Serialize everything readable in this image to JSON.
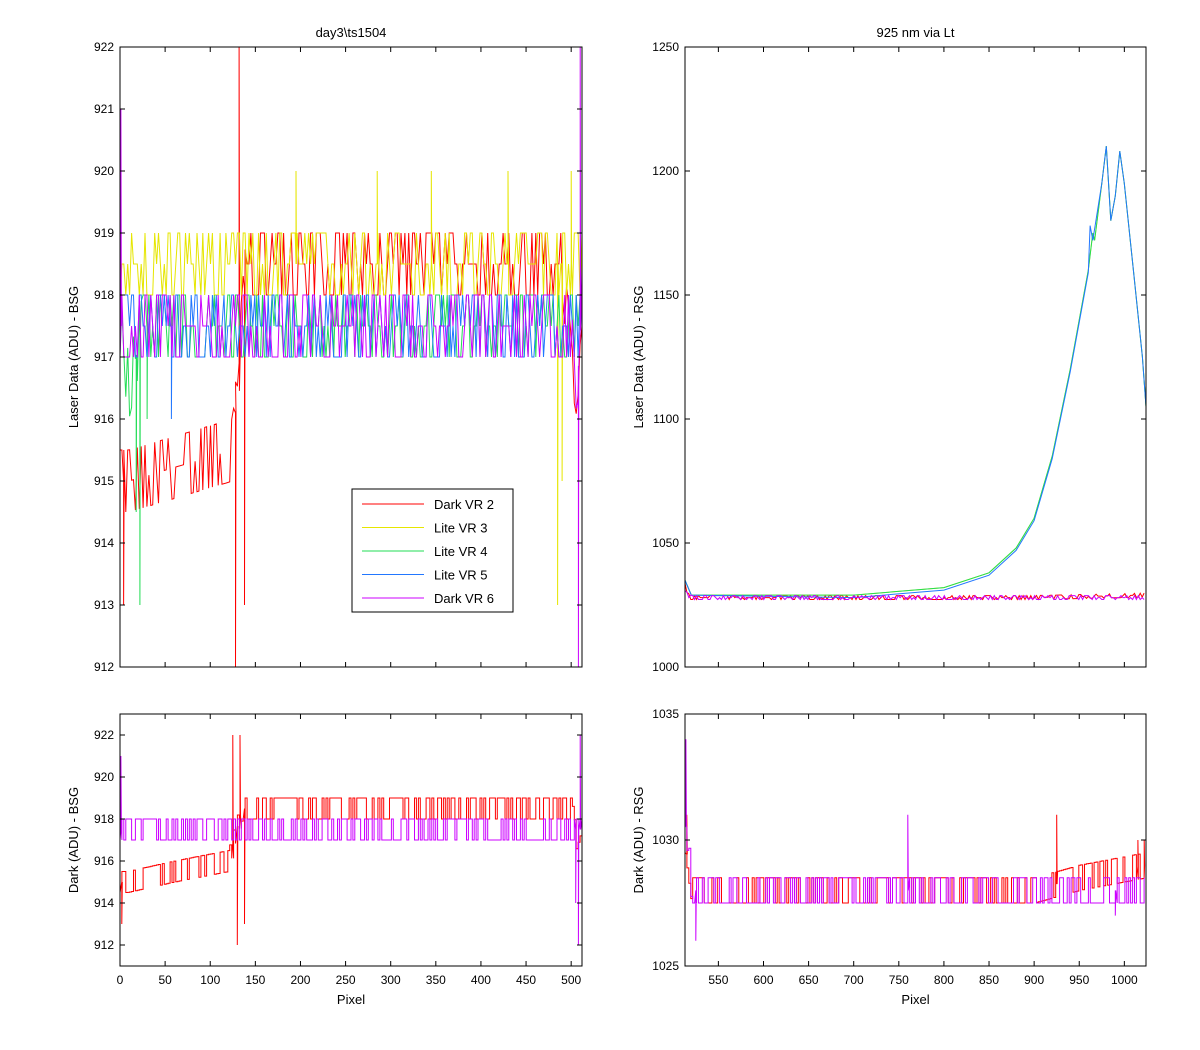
{
  "colors": {
    "dark_vr2": "#ff0000",
    "lite_vr3": "#e6e600",
    "lite_vr4": "#22dd55",
    "lite_vr5": "#2277ff",
    "dark_vr6": "#cc00ff"
  },
  "chart_data": [
    {
      "id": "top_left",
      "type": "line",
      "title": "day3\\ts1504",
      "xlabel": "",
      "ylabel": "Laser Data (ADU) - BSG",
      "xlim": [
        0,
        512
      ],
      "ylim": [
        912,
        922
      ],
      "yticks": [
        912,
        913,
        914,
        915,
        916,
        917,
        918,
        919,
        920,
        921,
        922
      ],
      "legend": {
        "placement": "center"
      },
      "series": [
        {
          "name": "Dark VR 2",
          "color_key": "dark_vr2",
          "pattern": "noise",
          "levels": [
            [
              0,
              915
            ],
            [
              10,
              915
            ],
            [
              125,
              915.5
            ],
            [
              140,
              918.5
            ],
            [
              490,
              918.5
            ],
            [
              505,
              916
            ],
            [
              512,
              917
            ]
          ],
          "amp": 0.5,
          "spikes": [
            [
              128,
              912
            ],
            [
              132,
              922
            ],
            [
              138,
              913
            ],
            [
              4,
              913
            ]
          ]
        },
        {
          "name": "Lite VR 3",
          "color_key": "lite_vr3",
          "pattern": "noise",
          "levels": [
            [
              0,
              918.5
            ],
            [
              510,
              918.5
            ]
          ],
          "amp": 0.5,
          "spikes": [
            [
              195,
              920
            ],
            [
              285,
              920
            ],
            [
              345,
              920
            ],
            [
              430,
              920
            ],
            [
              485,
              913
            ],
            [
              490,
              915
            ],
            [
              500,
              920
            ]
          ]
        },
        {
          "name": "Lite VR 4",
          "color_key": "lite_vr4",
          "pattern": "noise",
          "levels": [
            [
              0,
              917.5
            ],
            [
              10,
              916.5
            ],
            [
              25,
              917.5
            ],
            [
              510,
              917.5
            ]
          ],
          "amp": 0.5,
          "spikes": [
            [
              22,
              913
            ],
            [
              30,
              916
            ],
            [
              18,
              914.5
            ]
          ]
        },
        {
          "name": "Lite VR 5",
          "color_key": "lite_vr5",
          "pattern": "noise",
          "levels": [
            [
              0,
              917.5
            ],
            [
              510,
              917.5
            ]
          ],
          "amp": 0.5,
          "spikes": [
            [
              57,
              916
            ]
          ]
        },
        {
          "name": "Dark VR 6",
          "color_key": "dark_vr6",
          "pattern": "noise",
          "levels": [
            [
              0,
              917.5
            ],
            [
              500,
              917.5
            ],
            [
              505,
              916
            ],
            [
              512,
              918
            ]
          ],
          "amp": 0.5,
          "spikes": [
            [
              508,
              912
            ],
            [
              510,
              922
            ],
            [
              1,
              921
            ]
          ]
        }
      ]
    },
    {
      "id": "top_right",
      "type": "line",
      "title": "925 nm via Lt",
      "xlabel": "",
      "ylabel": "Laser Data (ADU) - RSG",
      "xlim": [
        513,
        1024
      ],
      "ylim": [
        1000,
        1250
      ],
      "yticks": [
        1000,
        1050,
        1100,
        1150,
        1200,
        1250
      ],
      "series": [
        {
          "name": "Dark VR 2",
          "color_key": "dark_vr2",
          "pattern": "noise",
          "levels": [
            [
              513,
              1033
            ],
            [
              518,
              1028
            ],
            [
              900,
              1028
            ],
            [
              1024,
              1029
            ]
          ],
          "amp": 0.8,
          "spikes": []
        },
        {
          "name": "Lite VR 3",
          "color_key": "lite_vr3",
          "pattern": "curve",
          "points": [
            [
              513,
              1035
            ],
            [
              520,
              1029
            ],
            [
              700,
              1029
            ],
            [
              800,
              1032
            ],
            [
              850,
              1038
            ],
            [
              880,
              1048
            ],
            [
              900,
              1060
            ],
            [
              920,
              1085
            ],
            [
              940,
              1120
            ],
            [
              960,
              1160
            ],
            [
              965,
              1175
            ],
            [
              967,
              1172
            ],
            [
              975,
              1195
            ],
            [
              980,
              1210
            ],
            [
              985,
              1180
            ],
            [
              990,
              1190
            ],
            [
              995,
              1208
            ],
            [
              1000,
              1195
            ],
            [
              1010,
              1160
            ],
            [
              1020,
              1125
            ],
            [
              1024,
              1105
            ]
          ]
        },
        {
          "name": "Lite VR 4",
          "color_key": "lite_vr4",
          "pattern": "curve",
          "points": [
            [
              513,
              1035
            ],
            [
              520,
              1029
            ],
            [
              700,
              1029
            ],
            [
              800,
              1032
            ],
            [
              850,
              1038
            ],
            [
              880,
              1048
            ],
            [
              900,
              1060
            ],
            [
              920,
              1085
            ],
            [
              940,
              1120
            ],
            [
              960,
              1160
            ],
            [
              965,
              1175
            ],
            [
              967,
              1172
            ],
            [
              975,
              1195
            ],
            [
              980,
              1210
            ],
            [
              985,
              1180
            ],
            [
              990,
              1190
            ],
            [
              995,
              1208
            ],
            [
              1000,
              1195
            ],
            [
              1010,
              1160
            ],
            [
              1020,
              1125
            ],
            [
              1024,
              1105
            ]
          ]
        },
        {
          "name": "Lite VR 5",
          "color_key": "lite_vr5",
          "pattern": "curve",
          "points": [
            [
              513,
              1035
            ],
            [
              520,
              1029
            ],
            [
              700,
              1028
            ],
            [
              800,
              1031
            ],
            [
              850,
              1037
            ],
            [
              880,
              1047
            ],
            [
              900,
              1059
            ],
            [
              920,
              1084
            ],
            [
              940,
              1119
            ],
            [
              960,
              1159
            ],
            [
              962,
              1178
            ],
            [
              965,
              1172
            ],
            [
              975,
              1195
            ],
            [
              980,
              1210
            ],
            [
              985,
              1180
            ],
            [
              990,
              1190
            ],
            [
              995,
              1208
            ],
            [
              1000,
              1195
            ],
            [
              1010,
              1160
            ],
            [
              1020,
              1125
            ],
            [
              1024,
              1105
            ]
          ]
        },
        {
          "name": "Dark VR 6",
          "color_key": "dark_vr6",
          "pattern": "noise",
          "levels": [
            [
              513,
              1030
            ],
            [
              520,
              1028
            ],
            [
              1024,
              1028
            ]
          ],
          "amp": 0.8,
          "spikes": []
        }
      ]
    },
    {
      "id": "bottom_left",
      "type": "line",
      "title": "",
      "xlabel": "Pixel",
      "ylabel": "Dark (ADU) - BSG",
      "xlim": [
        0,
        512
      ],
      "ylim": [
        911,
        923
      ],
      "xticks": [
        0,
        50,
        100,
        150,
        200,
        250,
        300,
        350,
        400,
        450,
        500
      ],
      "yticks": [
        912,
        914,
        916,
        918,
        920,
        922
      ],
      "series": [
        {
          "name": "Dark VR 2",
          "color_key": "dark_vr2",
          "pattern": "step",
          "levels": [
            [
              0,
              915
            ],
            [
              8,
              915
            ],
            [
              60,
              915.5
            ],
            [
              120,
              916
            ],
            [
              135,
              918.5
            ],
            [
              500,
              918.5
            ],
            [
              505,
              917
            ],
            [
              512,
              918
            ]
          ],
          "amp": 0.5,
          "spikes": [
            [
              2,
              913
            ],
            [
              125,
              922
            ],
            [
              130,
              912
            ],
            [
              133,
              922
            ],
            [
              138,
              913
            ]
          ]
        },
        {
          "name": "Dark VR 6",
          "color_key": "dark_vr6",
          "pattern": "step",
          "levels": [
            [
              0,
              917.5
            ],
            [
              500,
              917.5
            ]
          ],
          "amp": 0.5,
          "spikes": [
            [
              1,
              921
            ],
            [
              505,
              914
            ],
            [
              508,
              912
            ],
            [
              510,
              922
            ]
          ]
        }
      ]
    },
    {
      "id": "bottom_right",
      "type": "line",
      "title": "",
      "xlabel": "Pixel",
      "ylabel": "Dark (ADU) - RSG",
      "xlim": [
        513,
        1024
      ],
      "ylim": [
        1025,
        1035
      ],
      "xticks": [
        550,
        600,
        650,
        700,
        750,
        800,
        850,
        900,
        950,
        1000
      ],
      "yticks": [
        1025,
        1030,
        1035
      ],
      "series": [
        {
          "name": "Dark VR 2",
          "color_key": "dark_vr2",
          "pattern": "step",
          "levels": [
            [
              513,
              1030
            ],
            [
              520,
              1028
            ],
            [
              900,
              1028
            ],
            [
              950,
              1028.5
            ],
            [
              1024,
              1029
            ]
          ],
          "amp": 0.5,
          "spikes": [
            [
              515,
              1031
            ],
            [
              925,
              1031
            ],
            [
              1015,
              1030
            ],
            [
              1022,
              1030
            ]
          ]
        },
        {
          "name": "Dark VR 6",
          "color_key": "dark_vr6",
          "pattern": "step",
          "levels": [
            [
              513,
              1031
            ],
            [
              520,
              1028
            ],
            [
              1024,
              1028
            ]
          ],
          "amp": 0.5,
          "spikes": [
            [
              514,
              1034
            ],
            [
              525,
              1026
            ],
            [
              760,
              1031
            ],
            [
              990,
              1027
            ]
          ]
        }
      ]
    }
  ]
}
